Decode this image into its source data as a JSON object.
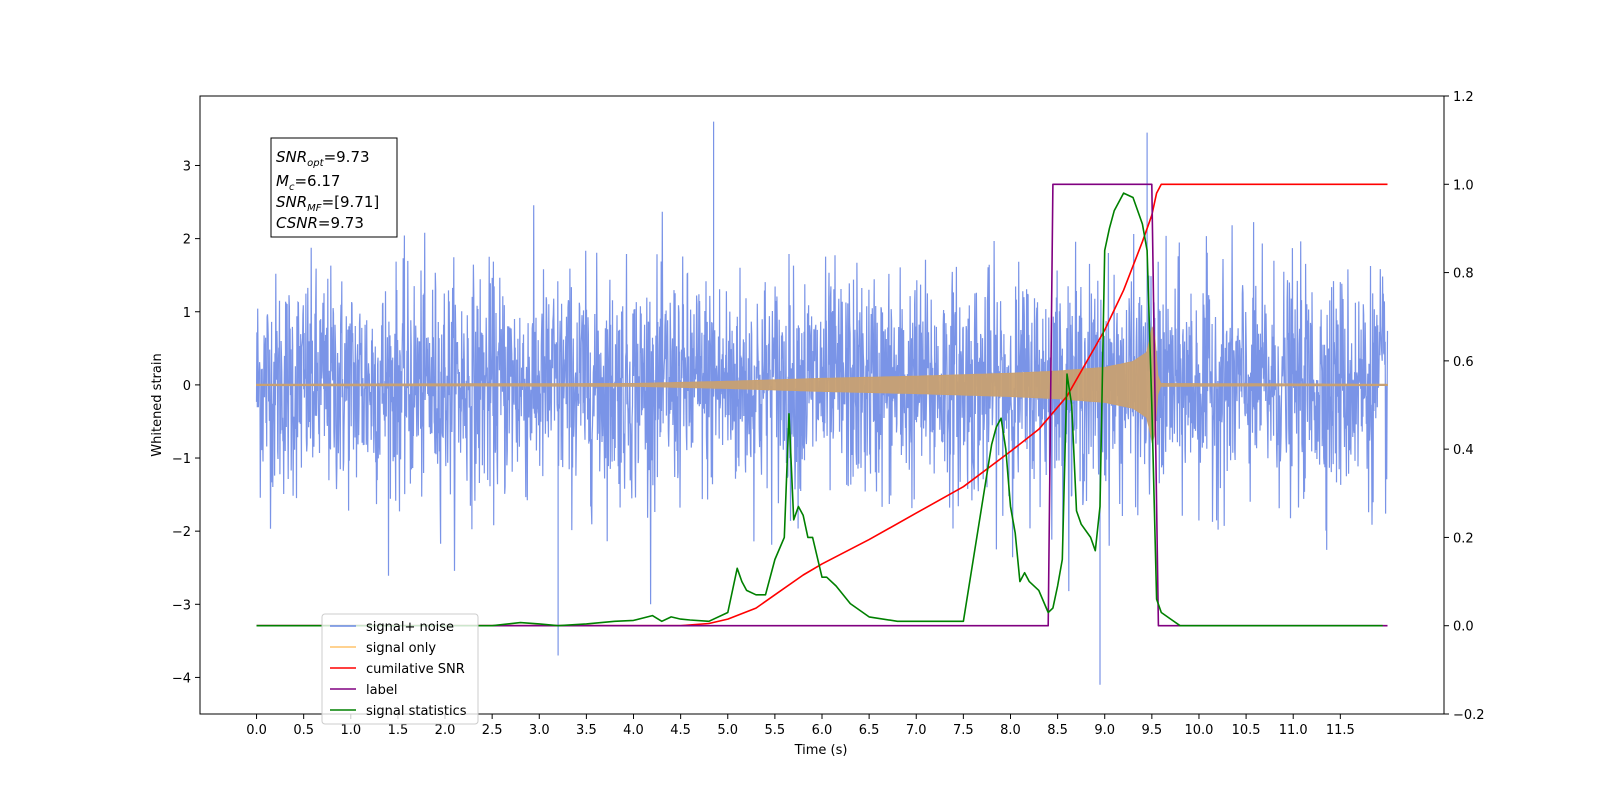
{
  "chart_data": {
    "type": "line",
    "xlabel": "Time (s)",
    "ylabel": "Whitened strain",
    "xlim": [
      -0.6,
      12.6
    ],
    "ylim": [
      -4.5,
      3.95
    ],
    "ylim_right": [
      -0.2,
      1.2
    ],
    "x_ticks": [
      "0.0",
      "0.5",
      "1.0",
      "1.5",
      "2.0",
      "2.5",
      "3.0",
      "3.5",
      "4.0",
      "4.5",
      "5.0",
      "5.5",
      "6.0",
      "6.5",
      "7.0",
      "7.5",
      "8.0",
      "8.5",
      "9.0",
      "9.5",
      "10.0",
      "10.5",
      "11.0",
      "11.5"
    ],
    "y_ticks_left": [
      -4,
      -3,
      -2,
      -1,
      0,
      1,
      2,
      3
    ],
    "y_ticks_right": [
      "−0.2",
      "0.0",
      "0.2",
      "0.4",
      "0.6",
      "0.8",
      "1.0",
      "1.2"
    ],
    "grid": false,
    "legend_position": "lower-left",
    "colors": {
      "signal_noise": "#6b88e4",
      "signal_only": "#c8a072",
      "cumulative_snr": "#ff0000",
      "label": "#800080",
      "signal_statistics": "#008000"
    },
    "annotation": {
      "snr_opt_label": "SNR",
      "snr_opt_sub": "opt",
      "snr_opt_value": "=9.73",
      "mc_label": "M",
      "mc_sub": "c",
      "mc_value": "=6.17",
      "snr_mf_label": "SNR",
      "snr_mf_sub": "MF",
      "snr_mf_value": "=[9.71]",
      "csnr_label": "CSNR",
      "csnr_value": "=9.73"
    },
    "series": [
      {
        "name": "signal+ noise",
        "axis": "left",
        "x_range": [
          0.0,
          12.0
        ],
        "envelope_std": 0.75,
        "extremes": [
          {
            "x": 4.85,
            "y": 3.6
          },
          {
            "x": 9.45,
            "y": 3.45
          },
          {
            "x": 8.95,
            "y": -4.1
          },
          {
            "x": 3.2,
            "y": -3.7
          }
        ]
      },
      {
        "name": "signal only",
        "axis": "left",
        "envelope_x": [
          0.0,
          4.0,
          5.0,
          6.0,
          7.0,
          8.0,
          8.5,
          9.0,
          9.3,
          9.45,
          9.52,
          9.57,
          12.0
        ],
        "envelope_amp": [
          0.01,
          0.02,
          0.05,
          0.09,
          0.12,
          0.16,
          0.19,
          0.24,
          0.32,
          0.45,
          0.9,
          0.02,
          0.01
        ]
      },
      {
        "name": "cumilative SNR",
        "axis": "right",
        "x": [
          0.0,
          4.5,
          4.8,
          5.0,
          5.3,
          5.5,
          5.8,
          6.0,
          6.5,
          7.0,
          7.5,
          8.0,
          8.3,
          8.6,
          9.0,
          9.2,
          9.4,
          9.5,
          9.55,
          9.6,
          12.0
        ],
        "y": [
          0.0,
          0.0,
          0.005,
          0.015,
          0.04,
          0.07,
          0.115,
          0.14,
          0.195,
          0.255,
          0.315,
          0.395,
          0.445,
          0.52,
          0.67,
          0.76,
          0.87,
          0.93,
          0.98,
          1.0,
          1.0
        ]
      },
      {
        "name": "label",
        "axis": "right",
        "x": [
          0.0,
          8.4,
          8.45,
          9.5,
          9.57,
          12.0
        ],
        "y": [
          0.0,
          0.0,
          1.0,
          1.0,
          0.0,
          0.0
        ]
      },
      {
        "name": "signal statistics",
        "axis": "right",
        "x": [
          0.0,
          2.5,
          2.8,
          3.0,
          3.2,
          3.5,
          3.8,
          4.0,
          4.2,
          4.3,
          4.4,
          4.5,
          4.6,
          4.8,
          5.0,
          5.1,
          5.15,
          5.2,
          5.3,
          5.4,
          5.5,
          5.6,
          5.65,
          5.7,
          5.75,
          5.8,
          5.85,
          5.9,
          6.0,
          6.05,
          6.15,
          6.3,
          6.5,
          6.8,
          7.0,
          7.2,
          7.5,
          7.8,
          7.85,
          7.9,
          7.95,
          8.0,
          8.05,
          8.1,
          8.15,
          8.2,
          8.3,
          8.4,
          8.45,
          8.5,
          8.55,
          8.6,
          8.65,
          8.7,
          8.75,
          8.85,
          8.9,
          8.95,
          9.0,
          9.05,
          9.1,
          9.2,
          9.3,
          9.4,
          9.45,
          9.5,
          9.55,
          9.6,
          9.7,
          9.8,
          10.0,
          11.5,
          11.95
        ],
        "y": [
          0.0,
          0.0,
          0.007,
          0.004,
          0.0,
          0.004,
          0.01,
          0.012,
          0.023,
          0.01,
          0.02,
          0.015,
          0.013,
          0.01,
          0.03,
          0.13,
          0.1,
          0.08,
          0.07,
          0.07,
          0.15,
          0.2,
          0.48,
          0.24,
          0.27,
          0.25,
          0.2,
          0.2,
          0.11,
          0.11,
          0.09,
          0.05,
          0.02,
          0.01,
          0.01,
          0.01,
          0.01,
          0.41,
          0.45,
          0.47,
          0.4,
          0.27,
          0.21,
          0.1,
          0.12,
          0.1,
          0.08,
          0.03,
          0.04,
          0.09,
          0.15,
          0.57,
          0.5,
          0.26,
          0.23,
          0.2,
          0.17,
          0.27,
          0.85,
          0.9,
          0.94,
          0.98,
          0.97,
          0.91,
          0.85,
          0.5,
          0.06,
          0.03,
          0.015,
          0.0,
          0.0,
          0.0,
          0.0
        ]
      }
    ]
  }
}
